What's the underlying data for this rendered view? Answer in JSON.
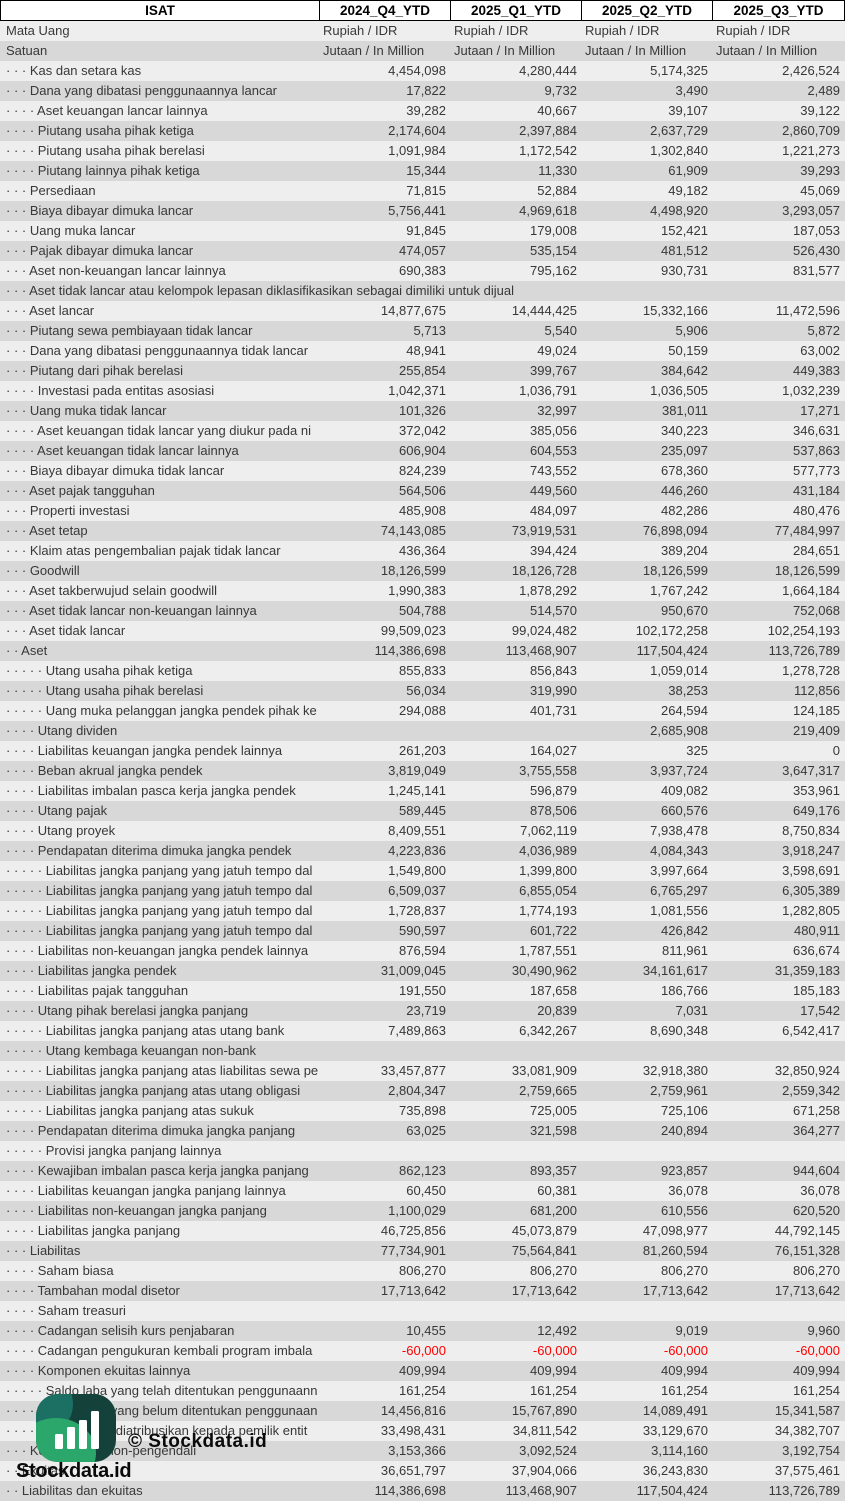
{
  "header": {
    "company": "ISAT",
    "columns": [
      "2024_Q4_YTD",
      "2025_Q1_YTD",
      "2025_Q2_YTD",
      "2025_Q3_YTD"
    ]
  },
  "meta_rows": [
    {
      "label": "Mata Uang",
      "values": [
        "Rupiah / IDR",
        "Rupiah / IDR",
        "Rupiah / IDR",
        "Rupiah / IDR"
      ]
    },
    {
      "label": "Satuan",
      "values": [
        "Jutaan / In Million",
        "Jutaan / In Million",
        "Jutaan / In Million",
        "Jutaan / In Million"
      ]
    }
  ],
  "rows": [
    {
      "d": 3,
      "t": "Kas dan setara kas",
      "v": [
        "4,454,098",
        "4,280,444",
        "5,174,325",
        "2,426,524"
      ]
    },
    {
      "d": 3,
      "t": "Dana yang dibatasi penggunaannya lancar",
      "v": [
        "17,822",
        "9,732",
        "3,490",
        "2,489"
      ]
    },
    {
      "d": 4,
      "t": "Aset keuangan lancar lainnya",
      "v": [
        "39,282",
        "40,667",
        "39,107",
        "39,122"
      ]
    },
    {
      "d": 4,
      "t": "Piutang usaha pihak ketiga",
      "v": [
        "2,174,604",
        "2,397,884",
        "2,637,729",
        "2,860,709"
      ]
    },
    {
      "d": 4,
      "t": "Piutang usaha pihak berelasi",
      "v": [
        "1,091,984",
        "1,172,542",
        "1,302,840",
        "1,221,273"
      ]
    },
    {
      "d": 4,
      "t": "Piutang lainnya pihak ketiga",
      "v": [
        "15,344",
        "11,330",
        "61,909",
        "39,293"
      ]
    },
    {
      "d": 3,
      "t": "Persediaan",
      "v": [
        "71,815",
        "52,884",
        "49,182",
        "45,069"
      ]
    },
    {
      "d": 3,
      "t": "Biaya dibayar dimuka lancar",
      "v": [
        "5,756,441",
        "4,969,618",
        "4,498,920",
        "3,293,057"
      ]
    },
    {
      "d": 3,
      "t": "Uang muka lancar",
      "v": [
        "91,845",
        "179,008",
        "152,421",
        "187,053"
      ]
    },
    {
      "d": 3,
      "t": "Pajak dibayar dimuka lancar",
      "v": [
        "474,057",
        "535,154",
        "481,512",
        "526,430"
      ]
    },
    {
      "d": 3,
      "t": "Aset non-keuangan lancar lainnya",
      "v": [
        "690,383",
        "795,162",
        "930,731",
        "831,577"
      ]
    },
    {
      "d": 3,
      "t": "Aset tidak lancar atau kelompok lepasan diklasifikasikan sebagai dimiliki untuk dijual",
      "v": [
        "",
        "",
        "",
        ""
      ]
    },
    {
      "d": 3,
      "t": "Aset lancar",
      "v": [
        "14,877,675",
        "14,444,425",
        "15,332,166",
        "11,472,596"
      ]
    },
    {
      "d": 3,
      "t": "Piutang sewa pembiayaan tidak lancar",
      "v": [
        "5,713",
        "5,540",
        "5,906",
        "5,872"
      ]
    },
    {
      "d": 3,
      "t": "Dana yang dibatasi penggunaannya tidak lancar",
      "v": [
        "48,941",
        "49,024",
        "50,159",
        "63,002"
      ]
    },
    {
      "d": 3,
      "t": "Piutang dari pihak berelasi",
      "v": [
        "255,854",
        "399,767",
        "384,642",
        "449,383"
      ]
    },
    {
      "d": 4,
      "t": "Investasi pada entitas asosiasi",
      "v": [
        "1,042,371",
        "1,036,791",
        "1,036,505",
        "1,032,239"
      ]
    },
    {
      "d": 3,
      "t": "Uang muka tidak lancar",
      "v": [
        "101,326",
        "32,997",
        "381,011",
        "17,271"
      ]
    },
    {
      "d": 4,
      "t": "Aset keuangan tidak lancar yang diukur pada ni",
      "v": [
        "372,042",
        "385,056",
        "340,223",
        "346,631"
      ]
    },
    {
      "d": 4,
      "t": "Aset keuangan tidak lancar lainnya",
      "v": [
        "606,904",
        "604,553",
        "235,097",
        "537,863"
      ]
    },
    {
      "d": 3,
      "t": "Biaya dibayar dimuka tidak lancar",
      "v": [
        "824,239",
        "743,552",
        "678,360",
        "577,773"
      ]
    },
    {
      "d": 3,
      "t": "Aset pajak tangguhan",
      "v": [
        "564,506",
        "449,560",
        "446,260",
        "431,184"
      ]
    },
    {
      "d": 3,
      "t": "Properti investasi",
      "v": [
        "485,908",
        "484,097",
        "482,286",
        "480,476"
      ]
    },
    {
      "d": 3,
      "t": "Aset tetap",
      "v": [
        "74,143,085",
        "73,919,531",
        "76,898,094",
        "77,484,997"
      ]
    },
    {
      "d": 3,
      "t": "Klaim atas pengembalian pajak tidak lancar",
      "v": [
        "436,364",
        "394,424",
        "389,204",
        "284,651"
      ]
    },
    {
      "d": 3,
      "t": "Goodwill",
      "v": [
        "18,126,599",
        "18,126,728",
        "18,126,599",
        "18,126,599"
      ]
    },
    {
      "d": 3,
      "t": "Aset takberwujud selain goodwill",
      "v": [
        "1,990,383",
        "1,878,292",
        "1,767,242",
        "1,664,184"
      ]
    },
    {
      "d": 3,
      "t": "Aset tidak lancar non-keuangan lainnya",
      "v": [
        "504,788",
        "514,570",
        "950,670",
        "752,068"
      ]
    },
    {
      "d": 3,
      "t": "Aset tidak lancar",
      "v": [
        "99,509,023",
        "99,024,482",
        "102,172,258",
        "102,254,193"
      ]
    },
    {
      "d": 2,
      "t": "Aset",
      "v": [
        "114,386,698",
        "113,468,907",
        "117,504,424",
        "113,726,789"
      ]
    },
    {
      "d": 5,
      "t": "Utang usaha pihak ketiga",
      "v": [
        "855,833",
        "856,843",
        "1,059,014",
        "1,278,728"
      ]
    },
    {
      "d": 5,
      "t": "Utang usaha pihak berelasi",
      "v": [
        "56,034",
        "319,990",
        "38,253",
        "112,856"
      ]
    },
    {
      "d": 5,
      "t": "Uang muka pelanggan jangka pendek pihak ke",
      "v": [
        "294,088",
        "401,731",
        "264,594",
        "124,185"
      ]
    },
    {
      "d": 4,
      "t": "Utang dividen",
      "v": [
        "",
        "",
        "2,685,908",
        "219,409"
      ]
    },
    {
      "d": 4,
      "t": "Liabilitas keuangan jangka pendek lainnya",
      "v": [
        "261,203",
        "164,027",
        "325",
        "0"
      ]
    },
    {
      "d": 4,
      "t": "Beban akrual jangka pendek",
      "v": [
        "3,819,049",
        "3,755,558",
        "3,937,724",
        "3,647,317"
      ]
    },
    {
      "d": 4,
      "t": "Liabilitas imbalan pasca kerja jangka pendek",
      "v": [
        "1,245,141",
        "596,879",
        "409,082",
        "353,961"
      ]
    },
    {
      "d": 4,
      "t": "Utang pajak",
      "v": [
        "589,445",
        "878,506",
        "660,576",
        "649,176"
      ]
    },
    {
      "d": 4,
      "t": "Utang proyek",
      "v": [
        "8,409,551",
        "7,062,119",
        "7,938,478",
        "8,750,834"
      ]
    },
    {
      "d": 4,
      "t": "Pendapatan diterima dimuka jangka pendek",
      "v": [
        "4,223,836",
        "4,036,989",
        "4,084,343",
        "3,918,247"
      ]
    },
    {
      "d": 5,
      "t": "Liabilitas jangka panjang yang jatuh tempo dal",
      "v": [
        "1,549,800",
        "1,399,800",
        "3,997,664",
        "3,598,691"
      ]
    },
    {
      "d": 5,
      "t": "Liabilitas jangka panjang yang jatuh tempo dal",
      "v": [
        "6,509,037",
        "6,855,054",
        "6,765,297",
        "6,305,389"
      ]
    },
    {
      "d": 5,
      "t": "Liabilitas jangka panjang yang jatuh tempo dal",
      "v": [
        "1,728,837",
        "1,774,193",
        "1,081,556",
        "1,282,805"
      ]
    },
    {
      "d": 5,
      "t": "Liabilitas jangka panjang yang jatuh tempo dal",
      "v": [
        "590,597",
        "601,722",
        "426,842",
        "480,911"
      ]
    },
    {
      "d": 4,
      "t": "Liabilitas non-keuangan jangka pendek lainnya",
      "v": [
        "876,594",
        "1,787,551",
        "811,961",
        "636,674"
      ]
    },
    {
      "d": 4,
      "t": "Liabilitas jangka pendek",
      "v": [
        "31,009,045",
        "30,490,962",
        "34,161,617",
        "31,359,183"
      ]
    },
    {
      "d": 4,
      "t": "Liabilitas pajak tangguhan",
      "v": [
        "191,550",
        "187,658",
        "186,766",
        "185,183"
      ]
    },
    {
      "d": 4,
      "t": "Utang pihak berelasi jangka panjang",
      "v": [
        "23,719",
        "20,839",
        "7,031",
        "17,542"
      ]
    },
    {
      "d": 5,
      "t": "Liabilitas jangka panjang atas utang bank",
      "v": [
        "7,489,863",
        "6,342,267",
        "8,690,348",
        "6,542,417"
      ]
    },
    {
      "d": 5,
      "t": "Utang kembaga keuangan non-bank",
      "v": [
        "",
        "",
        "",
        ""
      ]
    },
    {
      "d": 5,
      "t": "Liabilitas jangka panjang atas liabilitas sewa pe",
      "v": [
        "33,457,877",
        "33,081,909",
        "32,918,380",
        "32,850,924"
      ]
    },
    {
      "d": 5,
      "t": "Liabilitas jangka panjang atas utang obligasi",
      "v": [
        "2,804,347",
        "2,759,665",
        "2,759,961",
        "2,559,342"
      ]
    },
    {
      "d": 5,
      "t": "Liabilitas jangka panjang atas sukuk",
      "v": [
        "735,898",
        "725,005",
        "725,106",
        "671,258"
      ]
    },
    {
      "d": 4,
      "t": "Pendapatan diterima dimuka jangka panjang",
      "v": [
        "63,025",
        "321,598",
        "240,894",
        "364,277"
      ]
    },
    {
      "d": 5,
      "t": "Provisi jangka panjang lainnya",
      "v": [
        "",
        "",
        "",
        ""
      ]
    },
    {
      "d": 4,
      "t": "Kewajiban imbalan pasca kerja jangka panjang",
      "v": [
        "862,123",
        "893,357",
        "923,857",
        "944,604"
      ]
    },
    {
      "d": 4,
      "t": "Liabilitas keuangan jangka panjang lainnya",
      "v": [
        "60,450",
        "60,381",
        "36,078",
        "36,078"
      ]
    },
    {
      "d": 4,
      "t": "Liabilitas non-keuangan jangka panjang",
      "v": [
        "1,100,029",
        "681,200",
        "610,556",
        "620,520"
      ]
    },
    {
      "d": 4,
      "t": "Liabilitas jangka panjang",
      "v": [
        "46,725,856",
        "45,073,879",
        "47,098,977",
        "44,792,145"
      ]
    },
    {
      "d": 3,
      "t": "Liabilitas",
      "v": [
        "77,734,901",
        "75,564,841",
        "81,260,594",
        "76,151,328"
      ]
    },
    {
      "d": 4,
      "t": "Saham biasa",
      "v": [
        "806,270",
        "806,270",
        "806,270",
        "806,270"
      ]
    },
    {
      "d": 4,
      "t": "Tambahan modal disetor",
      "v": [
        "17,713,642",
        "17,713,642",
        "17,713,642",
        "17,713,642"
      ]
    },
    {
      "d": 4,
      "t": "Saham treasuri",
      "v": [
        "",
        "",
        "",
        ""
      ]
    },
    {
      "d": 4,
      "t": "Cadangan selisih kurs penjabaran",
      "v": [
        "10,455",
        "12,492",
        "9,019",
        "9,960"
      ]
    },
    {
      "d": 4,
      "t": "Cadangan pengukuran kembali program imbala",
      "v": [
        "-60,000",
        "-60,000",
        "-60,000",
        "-60,000"
      ]
    },
    {
      "d": 4,
      "t": "Komponen ekuitas lainnya",
      "v": [
        "409,994",
        "409,994",
        "409,994",
        "409,994"
      ]
    },
    {
      "d": 5,
      "t": "Saldo laba yang telah ditentukan penggunaann",
      "v": [
        "161,254",
        "161,254",
        "161,254",
        "161,254"
      ]
    },
    {
      "d": 5,
      "t": "Saldo laba yang belum ditentukan penggunaan",
      "v": [
        "14,456,816",
        "15,767,890",
        "14,089,491",
        "15,341,587"
      ]
    },
    {
      "d": 4,
      "t": "Ekuitas yang diatribusikan kepada pemilik entit",
      "v": [
        "33,498,431",
        "34,811,542",
        "33,129,670",
        "34,382,707"
      ]
    },
    {
      "d": 3,
      "t": "Kepentingan non-pengendali",
      "v": [
        "3,153,366",
        "3,092,524",
        "3,114,160",
        "3,192,754"
      ]
    },
    {
      "d": 2,
      "t": "Ekuitas",
      "v": [
        "36,651,797",
        "37,904,066",
        "36,243,830",
        "37,575,461"
      ]
    },
    {
      "d": 2,
      "t": "Liabilitas dan ekuitas",
      "v": [
        "114,386,698",
        "113,468,907",
        "117,504,424",
        "113,726,789"
      ]
    }
  ],
  "watermark": {
    "center": "© Stockdata.id",
    "brand": "Stockdata.id"
  },
  "colors": {
    "negative": "#ff0000",
    "stripe_light": "#eeeeee",
    "stripe_dark": "#d8d8d8",
    "logo_dark_teal": "#14423a",
    "logo_teal": "#1c6f63",
    "logo_green": "#2ba76b"
  }
}
